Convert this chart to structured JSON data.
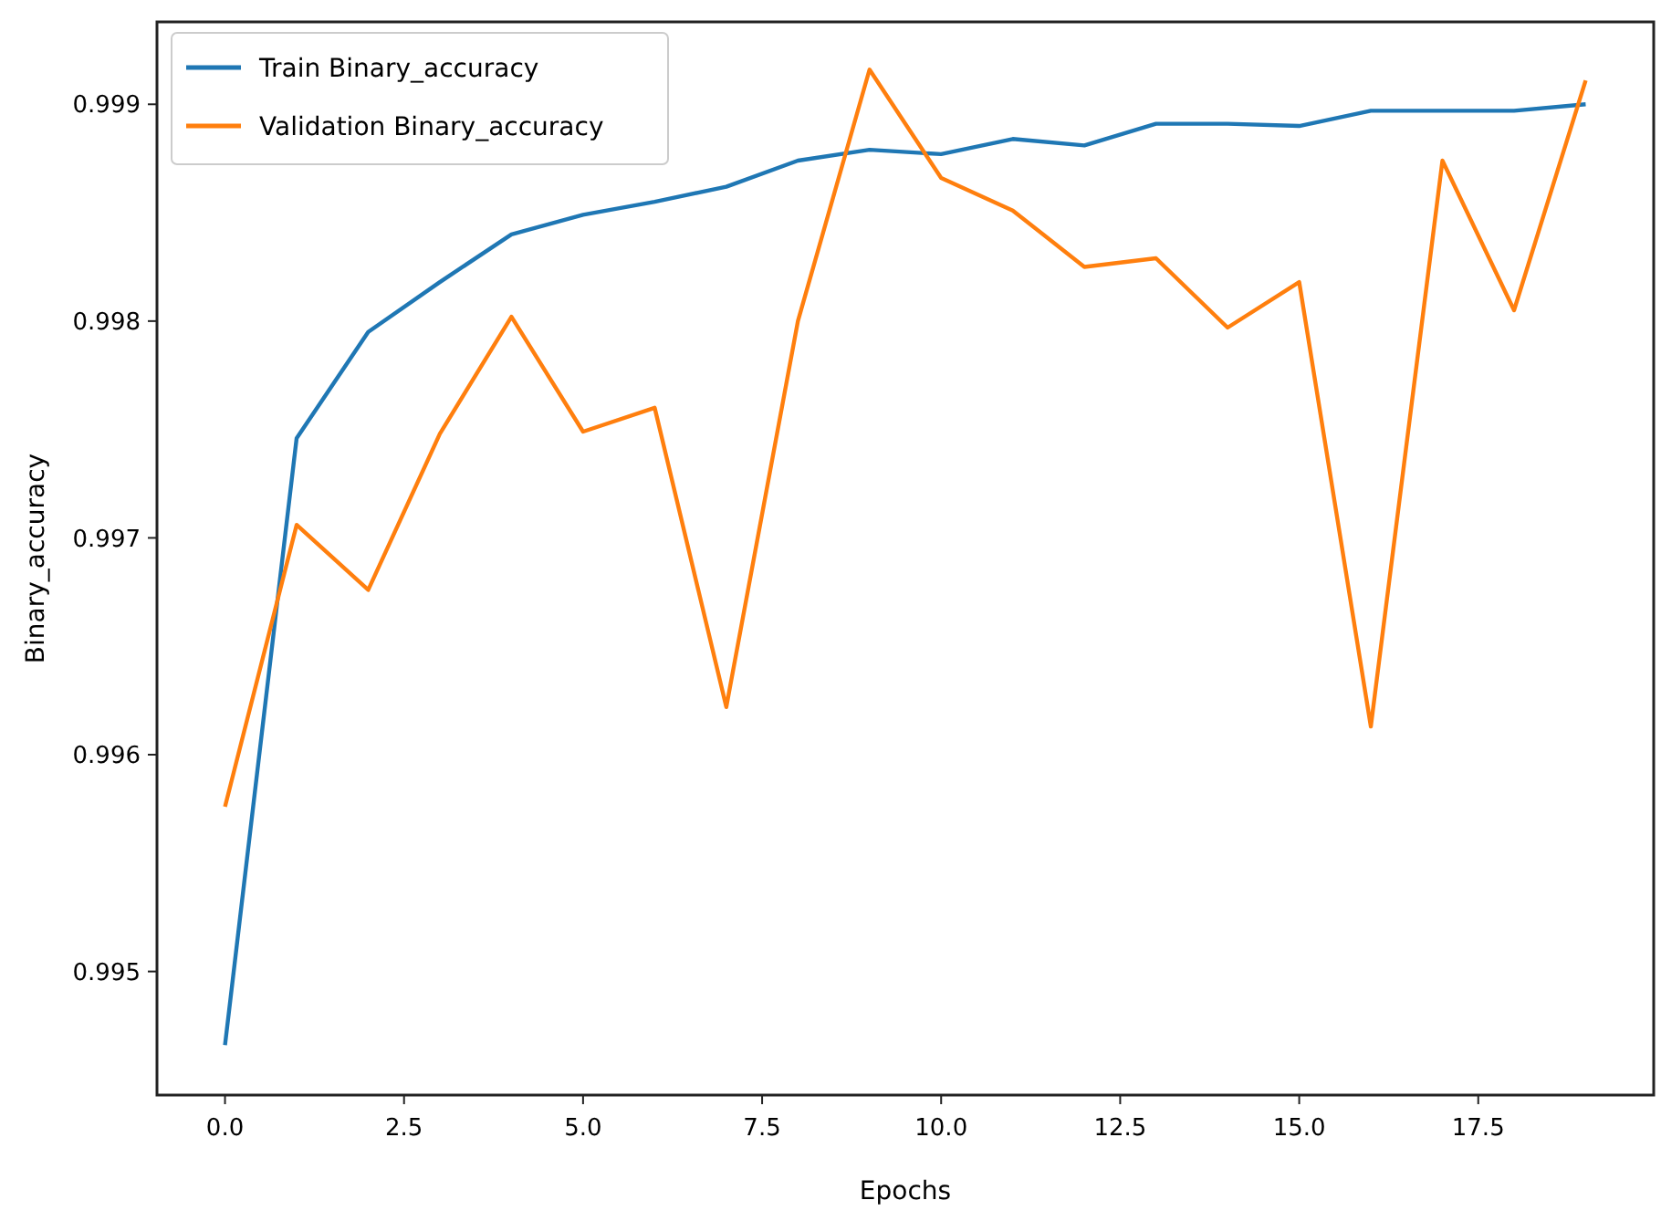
{
  "chart_data": {
    "type": "line",
    "xlabel": "Epochs",
    "ylabel": "Binary_accuracy",
    "x": [
      0,
      1,
      2,
      3,
      4,
      5,
      6,
      7,
      8,
      9,
      10,
      11,
      12,
      13,
      14,
      15,
      16,
      17,
      18,
      19
    ],
    "series": [
      {
        "name": "Train Binary_accuracy",
        "color": "#1f77b4",
        "values": [
          0.99466,
          0.99746,
          0.99795,
          0.99818,
          0.9984,
          0.99849,
          0.99855,
          0.99862,
          0.99874,
          0.99879,
          0.99877,
          0.99884,
          0.99881,
          0.99891,
          0.99891,
          0.9989,
          0.99897,
          0.99897,
          0.99897,
          0.999
        ]
      },
      {
        "name": "Validation Binary_accuracy",
        "color": "#ff7f0e",
        "values": [
          0.99576,
          0.99706,
          0.99676,
          0.99748,
          0.99802,
          0.99749,
          0.9976,
          0.99622,
          0.998,
          0.99916,
          0.99866,
          0.99851,
          0.99825,
          0.99829,
          0.99797,
          0.99818,
          0.99613,
          0.99874,
          0.99805,
          0.99911
        ]
      }
    ],
    "xlim": [
      -0.95,
      19.95
    ],
    "ylim": [
      0.99443,
      0.99938
    ],
    "xticks": [
      {
        "value": 0,
        "label": "0.0"
      },
      {
        "value": 2.5,
        "label": "2.5"
      },
      {
        "value": 5,
        "label": "5.0"
      },
      {
        "value": 7.5,
        "label": "7.5"
      },
      {
        "value": 10,
        "label": "10.0"
      },
      {
        "value": 12.5,
        "label": "12.5"
      },
      {
        "value": 15,
        "label": "15.0"
      },
      {
        "value": 17.5,
        "label": "17.5"
      }
    ],
    "yticks": [
      0.995,
      0.996,
      0.997,
      0.998,
      0.999
    ],
    "legend": "top left",
    "grid": false,
    "marker": "none",
    "line_style": "solid"
  }
}
